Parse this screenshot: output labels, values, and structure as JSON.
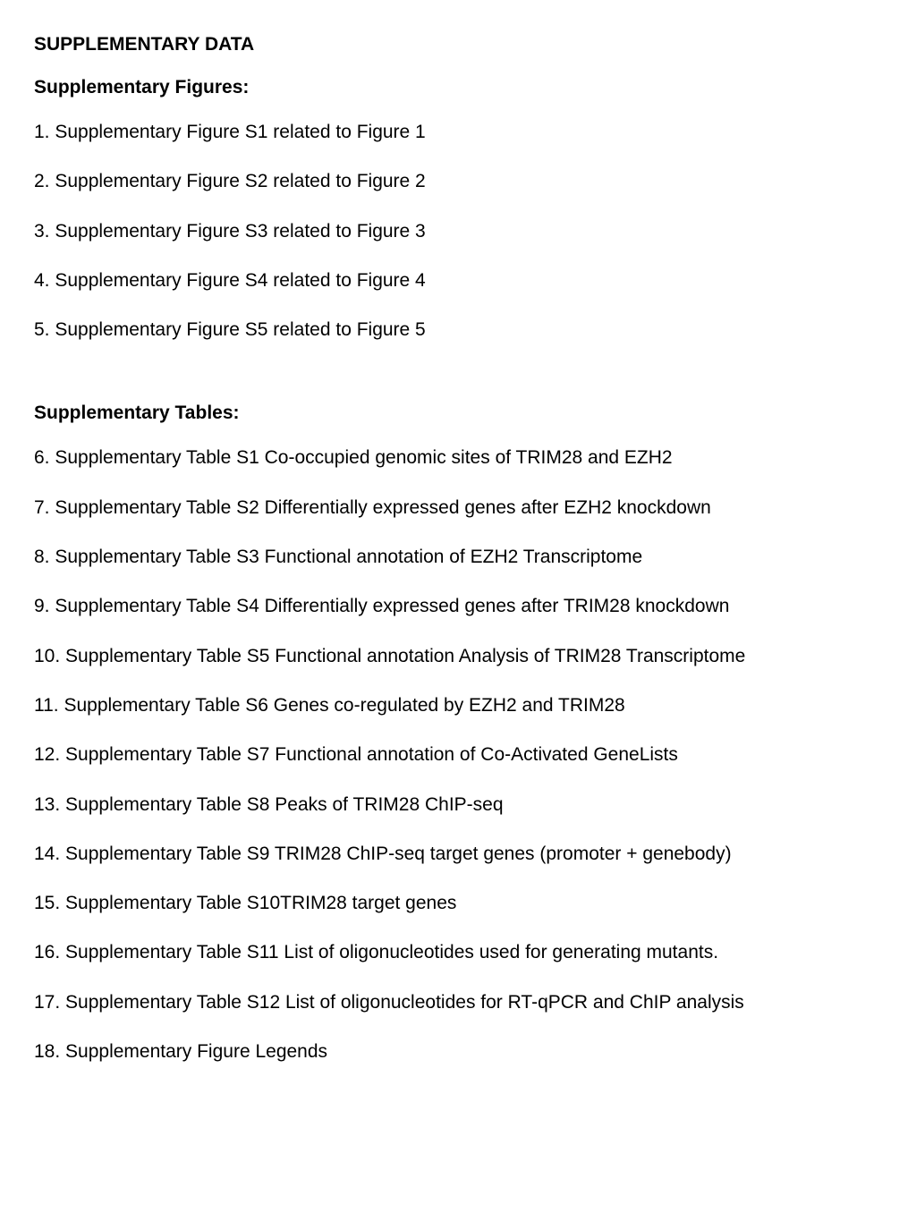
{
  "title": "SUPPLEMENTARY DATA",
  "figures": {
    "heading": "Supplementary Figures:",
    "items": [
      "1. Supplementary Figure S1 related to Figure 1",
      "2. Supplementary Figure S2 related to Figure 2",
      "3. Supplementary Figure S3 related to Figure 3",
      "4. Supplementary Figure S4 related to Figure 4",
      "5. Supplementary Figure S5 related to Figure 5"
    ]
  },
  "tables": {
    "heading": "Supplementary Tables:",
    "items": [
      "6. Supplementary Table S1 Co-occupied genomic sites of TRIM28 and EZH2",
      "7. Supplementary Table S2 Differentially expressed genes after EZH2 knockdown",
      "8. Supplementary Table S3 Functional annotation of EZH2 Transcriptome",
      "9. Supplementary Table S4 Differentially expressed genes after TRIM28 knockdown",
      "10. Supplementary Table S5 Functional annotation  Analysis of TRIM28 Transcriptome",
      "11. Supplementary Table S6 Genes co-regulated by EZH2 and TRIM28",
      "12. Supplementary Table S7 Functional annotation of Co-Activated GeneLists",
      "13. Supplementary Table S8 Peaks of TRIM28 ChIP-seq",
      "14. Supplementary Table S9 TRIM28 ChIP-seq target genes (promoter + genebody)",
      "15. Supplementary Table S10TRIM28 target genes",
      "16. Supplementary Table S11 List of oligonucleotides used for generating mutants.",
      "17. Supplementary Table S12 List of oligonucleotides for RT-qPCR and ChIP analysis",
      "18. Supplementary Figure Legends"
    ]
  }
}
